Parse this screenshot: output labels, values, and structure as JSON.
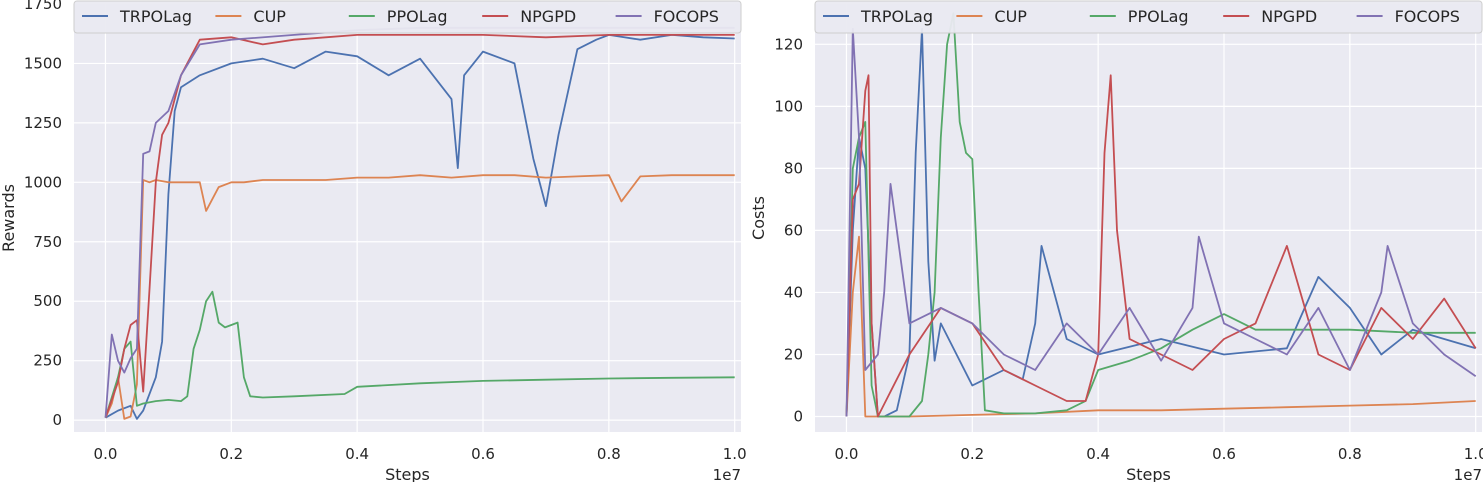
{
  "colors": {
    "TRPOLag": "#4c72b0",
    "CUP": "#dd8452",
    "PPOLag": "#55a868",
    "NPGPD": "#c44e52",
    "FOCOPS": "#8172b3",
    "panel_background": "#eaeaf2",
    "grid": "#ffffff"
  },
  "chart_data": [
    {
      "type": "line",
      "xlabel": "Steps",
      "ylabel": "Rewards",
      "x_offset_label": "1e7",
      "xlim": [
        -0.05,
        1.01
      ],
      "ylim": [
        -50,
        1750
      ],
      "x_ticks": [
        "0.0",
        "0.2",
        "0.4",
        "0.6",
        "0.8",
        "1.0"
      ],
      "y_ticks": [
        "0",
        "250",
        "500",
        "750",
        "1000",
        "1250",
        "1500",
        "1750"
      ],
      "grid": true,
      "legend": "top, horizontal",
      "series": [
        {
          "name": "TRPOLag",
          "x": [
            0.0,
            0.02,
            0.04,
            0.05,
            0.06,
            0.08,
            0.09,
            0.1,
            0.11,
            0.12,
            0.15,
            0.2,
            0.25,
            0.3,
            0.35,
            0.4,
            0.45,
            0.5,
            0.55,
            0.56,
            0.57,
            0.6,
            0.65,
            0.68,
            0.7,
            0.72,
            0.75,
            0.78,
            0.8,
            0.85,
            0.9,
            0.95,
            1.0
          ],
          "y": [
            10,
            40,
            60,
            5,
            40,
            180,
            330,
            950,
            1300,
            1400,
            1450,
            1500,
            1520,
            1480,
            1550,
            1530,
            1450,
            1520,
            1350,
            1060,
            1450,
            1550,
            1500,
            1100,
            900,
            1200,
            1560,
            1600,
            1620,
            1600,
            1620,
            1610,
            1605
          ]
        },
        {
          "name": "CUP",
          "x": [
            0.0,
            0.01,
            0.02,
            0.03,
            0.04,
            0.05,
            0.06,
            0.07,
            0.08,
            0.1,
            0.15,
            0.16,
            0.18,
            0.2,
            0.22,
            0.25,
            0.3,
            0.35,
            0.4,
            0.45,
            0.5,
            0.55,
            0.6,
            0.65,
            0.7,
            0.75,
            0.8,
            0.82,
            0.85,
            0.9,
            0.95,
            1.0
          ],
          "y": [
            10,
            70,
            180,
            5,
            15,
            150,
            1010,
            1000,
            1010,
            1000,
            1000,
            880,
            980,
            1000,
            1000,
            1010,
            1010,
            1010,
            1020,
            1020,
            1030,
            1020,
            1030,
            1030,
            1020,
            1025,
            1030,
            920,
            1025,
            1030,
            1030,
            1030
          ]
        },
        {
          "name": "PPOLag",
          "x": [
            0.0,
            0.02,
            0.03,
            0.04,
            0.05,
            0.06,
            0.08,
            0.1,
            0.12,
            0.13,
            0.14,
            0.15,
            0.16,
            0.17,
            0.18,
            0.19,
            0.2,
            0.21,
            0.22,
            0.23,
            0.25,
            0.3,
            0.38,
            0.4,
            0.5,
            0.6,
            0.7,
            0.8,
            0.9,
            1.0
          ],
          "y": [
            10,
            180,
            300,
            330,
            60,
            70,
            80,
            85,
            80,
            100,
            300,
            380,
            500,
            540,
            410,
            390,
            400,
            410,
            180,
            100,
            95,
            100,
            110,
            140,
            155,
            165,
            170,
            175,
            178,
            180
          ]
        },
        {
          "name": "NPGPD",
          "x": [
            0.0,
            0.02,
            0.03,
            0.04,
            0.05,
            0.06,
            0.07,
            0.08,
            0.09,
            0.1,
            0.12,
            0.15,
            0.2,
            0.25,
            0.3,
            0.35,
            0.4,
            0.5,
            0.6,
            0.7,
            0.8,
            0.9,
            1.0
          ],
          "y": [
            10,
            160,
            300,
            400,
            420,
            120,
            550,
            1000,
            1200,
            1250,
            1450,
            1600,
            1610,
            1580,
            1600,
            1610,
            1620,
            1620,
            1620,
            1610,
            1620,
            1620,
            1620
          ]
        },
        {
          "name": "FOCOPS",
          "x": [
            0.0,
            0.01,
            0.02,
            0.03,
            0.04,
            0.05,
            0.06,
            0.07,
            0.08,
            0.1,
            0.12,
            0.15,
            0.2,
            0.3,
            0.4,
            0.5,
            0.6,
            0.7,
            0.8,
            0.9,
            1.0
          ],
          "y": [
            10,
            360,
            250,
            200,
            260,
            300,
            1120,
            1130,
            1250,
            1300,
            1450,
            1580,
            1600,
            1620,
            1640,
            1650,
            1650,
            1650,
            1650,
            1650,
            1650
          ]
        }
      ]
    },
    {
      "type": "line",
      "xlabel": "Steps",
      "ylabel": "Costs",
      "x_offset_label": "1e7",
      "xlim": [
        -0.05,
        1.01
      ],
      "ylim": [
        -5,
        133
      ],
      "x_ticks": [
        "0.0",
        "0.2",
        "0.4",
        "0.6",
        "0.8",
        "1.0"
      ],
      "y_ticks": [
        "0",
        "20",
        "40",
        "60",
        "80",
        "100",
        "120"
      ],
      "grid": true,
      "legend": "top, horizontal",
      "series": [
        {
          "name": "TRPOLag",
          "x": [
            0.0,
            0.01,
            0.02,
            0.03,
            0.04,
            0.05,
            0.06,
            0.08,
            0.1,
            0.11,
            0.12,
            0.13,
            0.14,
            0.15,
            0.2,
            0.25,
            0.28,
            0.3,
            0.31,
            0.35,
            0.4,
            0.5,
            0.6,
            0.7,
            0.75,
            0.8,
            0.85,
            0.9,
            0.95,
            1.0
          ],
          "y": [
            0,
            60,
            90,
            80,
            30,
            0,
            0,
            2,
            20,
            85,
            125,
            50,
            18,
            30,
            10,
            15,
            12,
            30,
            55,
            25,
            20,
            25,
            20,
            22,
            45,
            35,
            20,
            28,
            25,
            22
          ]
        },
        {
          "name": "CUP",
          "x": [
            0.0,
            0.01,
            0.02,
            0.03,
            0.04,
            0.05,
            0.1,
            0.2,
            0.3,
            0.4,
            0.5,
            0.6,
            0.7,
            0.8,
            0.9,
            1.0
          ],
          "y": [
            0,
            40,
            58,
            0,
            0,
            0,
            0,
            0.5,
            1,
            2,
            2,
            2.5,
            3,
            3.5,
            4,
            5
          ]
        },
        {
          "name": "PPOLag",
          "x": [
            0.0,
            0.01,
            0.02,
            0.03,
            0.04,
            0.05,
            0.1,
            0.12,
            0.13,
            0.14,
            0.15,
            0.16,
            0.17,
            0.18,
            0.19,
            0.2,
            0.21,
            0.22,
            0.25,
            0.3,
            0.35,
            0.38,
            0.4,
            0.45,
            0.5,
            0.55,
            0.6,
            0.65,
            0.7,
            0.8,
            0.9,
            1.0
          ],
          "y": [
            0,
            80,
            90,
            95,
            10,
            0,
            0,
            5,
            20,
            40,
            90,
            120,
            130,
            95,
            85,
            83,
            40,
            2,
            1,
            1,
            2,
            5,
            15,
            18,
            22,
            28,
            33,
            28,
            28,
            28,
            27,
            27
          ]
        },
        {
          "name": "NPGPD",
          "x": [
            0.0,
            0.01,
            0.02,
            0.03,
            0.035,
            0.04,
            0.05,
            0.1,
            0.15,
            0.2,
            0.25,
            0.3,
            0.35,
            0.38,
            0.4,
            0.41,
            0.42,
            0.43,
            0.45,
            0.5,
            0.55,
            0.6,
            0.65,
            0.7,
            0.75,
            0.8,
            0.85,
            0.9,
            0.95,
            1.0
          ],
          "y": [
            0,
            70,
            75,
            105,
            110,
            30,
            0,
            20,
            35,
            30,
            15,
            10,
            5,
            5,
            20,
            85,
            110,
            60,
            25,
            20,
            15,
            25,
            30,
            55,
            20,
            15,
            35,
            25,
            38,
            22
          ]
        },
        {
          "name": "FOCOPS",
          "x": [
            0.0,
            0.01,
            0.02,
            0.03,
            0.05,
            0.06,
            0.07,
            0.1,
            0.15,
            0.2,
            0.25,
            0.3,
            0.35,
            0.4,
            0.45,
            0.5,
            0.55,
            0.56,
            0.6,
            0.65,
            0.7,
            0.75,
            0.8,
            0.85,
            0.86,
            0.9,
            0.95,
            1.0
          ],
          "y": [
            0,
            125,
            90,
            15,
            20,
            40,
            75,
            30,
            35,
            30,
            20,
            15,
            30,
            20,
            35,
            18,
            35,
            58,
            30,
            25,
            20,
            35,
            15,
            40,
            55,
            30,
            20,
            13
          ]
        }
      ]
    }
  ]
}
